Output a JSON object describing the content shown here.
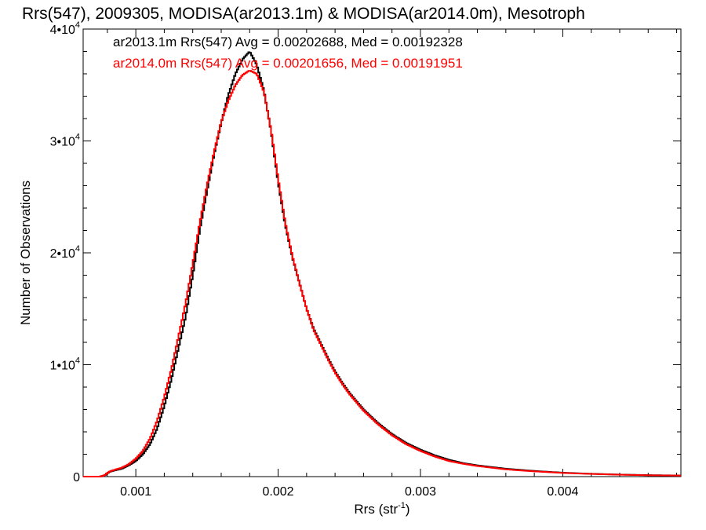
{
  "chart_data": {
    "type": "line",
    "title": "Rrs(547), 2009305, MODISA(ar2013.1m) & MODISA(ar2014.0m), Mesotroph",
    "xlabel": "Rrs (str",
    "xlabel_sup": "-1",
    "xlabel_close": ")",
    "ylabel": "Number of Observations",
    "xlim": [
      0.00063,
      0.00483
    ],
    "ylim": [
      0,
      40000
    ],
    "x_ticks": [
      {
        "value": 0.001,
        "label": "0.001"
      },
      {
        "value": 0.002,
        "label": "0.002"
      },
      {
        "value": 0.003,
        "label": "0.003"
      },
      {
        "value": 0.004,
        "label": "0.004"
      }
    ],
    "y_ticks": [
      {
        "value": 0,
        "label": "0",
        "sup": ""
      },
      {
        "value": 10000,
        "label": "1•10",
        "sup": "4"
      },
      {
        "value": 20000,
        "label": "2•10",
        "sup": "4"
      },
      {
        "value": 30000,
        "label": "3•10",
        "sup": "4"
      },
      {
        "value": 40000,
        "label": "4•10",
        "sup": "4"
      }
    ],
    "series": [
      {
        "name": "ar2013.1m Rrs(547) Avg = 0.00202688, Med = 0.00192328",
        "color": "#000000",
        "x": [
          0.00063,
          0.00075,
          0.00078,
          0.0008,
          0.00082,
          0.00085,
          0.0009,
          0.00095,
          0.001,
          0.00105,
          0.0011,
          0.00115,
          0.0012,
          0.00125,
          0.0013,
          0.00135,
          0.0014,
          0.00145,
          0.0015,
          0.00155,
          0.0016,
          0.00165,
          0.0017,
          0.00175,
          0.0018,
          0.00185,
          0.0019,
          0.00195,
          0.002,
          0.00205,
          0.0021,
          0.00215,
          0.0022,
          0.00225,
          0.0023,
          0.00235,
          0.0024,
          0.00245,
          0.0025,
          0.0026,
          0.0027,
          0.0028,
          0.0029,
          0.003,
          0.0031,
          0.0032,
          0.0033,
          0.0034,
          0.0035,
          0.0036,
          0.0038,
          0.004,
          0.0042,
          0.0044,
          0.0046,
          0.00483
        ],
        "y": [
          0,
          0,
          100,
          300,
          450,
          550,
          700,
          1000,
          1400,
          2000,
          2900,
          4300,
          6300,
          8700,
          11500,
          14300,
          18000,
          22100,
          25500,
          28800,
          31600,
          34100,
          36000,
          37300,
          38000,
          36800,
          34500,
          30900,
          26300,
          22500,
          19600,
          17300,
          15000,
          13200,
          11900,
          10600,
          9400,
          8400,
          7500,
          6000,
          4800,
          3800,
          3000,
          2400,
          1900,
          1500,
          1200,
          1000,
          850,
          700,
          500,
          350,
          250,
          180,
          130,
          100
        ]
      },
      {
        "name": "ar2014.0m Rrs(547) Avg = 0.00201656, Med = 0.00191951",
        "color": "#ff0000",
        "x": [
          0.00063,
          0.00075,
          0.00078,
          0.0008,
          0.00082,
          0.00085,
          0.0009,
          0.00095,
          0.001,
          0.00105,
          0.0011,
          0.00115,
          0.0012,
          0.00125,
          0.0013,
          0.00135,
          0.0014,
          0.00145,
          0.0015,
          0.00155,
          0.0016,
          0.00165,
          0.0017,
          0.00175,
          0.0018,
          0.00185,
          0.0019,
          0.00195,
          0.002,
          0.00205,
          0.0021,
          0.00215,
          0.0022,
          0.00225,
          0.0023,
          0.00235,
          0.0024,
          0.00245,
          0.0025,
          0.0026,
          0.0027,
          0.0028,
          0.0029,
          0.003,
          0.0031,
          0.0032,
          0.0033,
          0.0034,
          0.0035,
          0.0036,
          0.0038,
          0.004,
          0.0042,
          0.0044,
          0.0046,
          0.00483
        ],
        "y": [
          0,
          0,
          120,
          320,
          480,
          600,
          780,
          1100,
          1600,
          2300,
          3400,
          5000,
          7100,
          9600,
          12500,
          15500,
          19000,
          22700,
          26000,
          29000,
          31700,
          33600,
          35000,
          35900,
          36300,
          36000,
          34400,
          31000,
          26600,
          22700,
          19700,
          17300,
          15000,
          13100,
          11800,
          10500,
          9300,
          8300,
          7400,
          5900,
          4700,
          3700,
          2900,
          2300,
          1800,
          1400,
          1150,
          950,
          800,
          650,
          470,
          330,
          240,
          170,
          120,
          90
        ]
      }
    ],
    "legend_position": "top-left",
    "grid": false
  }
}
